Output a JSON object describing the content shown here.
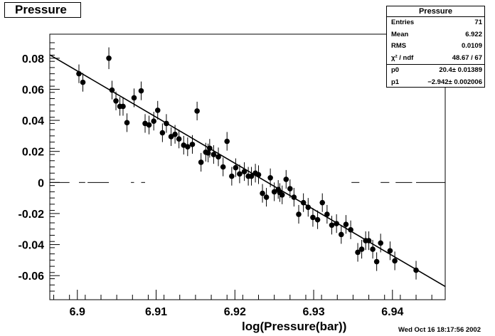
{
  "chart_data": {
    "type": "scatter",
    "title": "Pressure",
    "xlabel": "log(Pressure(bar))",
    "ylabel": "",
    "xlim": [
      6.8965,
      6.9467
    ],
    "ylim": [
      -0.0755,
      0.0955
    ],
    "x_ticks": [
      6.9,
      6.91,
      6.92,
      6.93,
      6.94
    ],
    "x_tick_labels": [
      "6.9",
      "6.91",
      "6.92",
      "6.93",
      "6.94"
    ],
    "y_ticks": [
      0.08,
      0.06,
      0.04,
      0.02,
      0,
      -0.02,
      -0.04,
      -0.06
    ],
    "y_tick_labels": [
      "0.08",
      "0.06",
      "0.04",
      "0.02",
      "0",
      "-0.02",
      "-0.04",
      "-0.06"
    ],
    "grid": false,
    "points": [
      [
        6.9002,
        0.07,
        0.006
      ],
      [
        6.9007,
        0.0645,
        0.006
      ],
      [
        6.904,
        0.08,
        0.007
      ],
      [
        6.9044,
        0.0595,
        0.006
      ],
      [
        6.9049,
        0.0525,
        0.006
      ],
      [
        6.9054,
        0.049,
        0.006
      ],
      [
        6.9058,
        0.049,
        0.006
      ],
      [
        6.9063,
        0.0385,
        0.006
      ],
      [
        6.9072,
        0.0545,
        0.006
      ],
      [
        6.9081,
        0.059,
        0.006
      ],
      [
        6.9086,
        0.038,
        0.006
      ],
      [
        6.9091,
        0.037,
        0.006
      ],
      [
        6.9097,
        0.0395,
        0.006
      ],
      [
        6.9102,
        0.0465,
        0.006
      ],
      [
        6.9108,
        0.032,
        0.006
      ],
      [
        6.9113,
        0.038,
        0.006
      ],
      [
        6.9119,
        0.0295,
        0.006
      ],
      [
        6.9124,
        0.031,
        0.006
      ],
      [
        6.9129,
        0.028,
        0.006
      ],
      [
        6.9135,
        0.024,
        0.006
      ],
      [
        6.914,
        0.023,
        0.006
      ],
      [
        6.9146,
        0.0245,
        0.006
      ],
      [
        6.9152,
        0.046,
        0.006
      ],
      [
        6.9157,
        0.013,
        0.006
      ],
      [
        6.9163,
        0.0195,
        0.006
      ],
      [
        6.9168,
        0.022,
        0.006
      ],
      [
        6.9173,
        0.018,
        0.006
      ],
      [
        6.9179,
        0.0165,
        0.006
      ],
      [
        6.9185,
        0.01,
        0.006
      ],
      [
        6.919,
        0.0265,
        0.006
      ],
      [
        6.9196,
        0.004,
        0.006
      ],
      [
        6.9201,
        0.0095,
        0.006
      ],
      [
        6.9206,
        0.0055,
        0.006
      ],
      [
        6.9212,
        0.007,
        0.006
      ],
      [
        6.9217,
        0.004,
        0.006
      ],
      [
        6.9221,
        0.004,
        0.006
      ],
      [
        6.9226,
        0.006,
        0.006
      ],
      [
        6.923,
        0.005,
        0.006
      ],
      [
        6.9235,
        -0.007,
        0.006
      ],
      [
        6.924,
        -0.0095,
        0.006
      ],
      [
        6.9245,
        0.003,
        0.006
      ],
      [
        6.925,
        -0.006,
        0.006
      ],
      [
        6.9255,
        -0.0045,
        0.006
      ],
      [
        6.926,
        -0.008,
        0.006
      ],
      [
        6.9265,
        0.002,
        0.006
      ],
      [
        6.927,
        -0.004,
        0.006
      ],
      [
        6.9275,
        -0.0095,
        0.006
      ],
      [
        6.9281,
        -0.0205,
        0.006
      ],
      [
        6.9287,
        -0.013,
        0.006
      ],
      [
        6.9293,
        -0.016,
        0.006
      ],
      [
        6.9299,
        -0.0225,
        0.006
      ],
      [
        6.9305,
        -0.024,
        0.006
      ],
      [
        6.9311,
        -0.013,
        0.006
      ],
      [
        6.9317,
        -0.0205,
        0.006
      ],
      [
        6.9323,
        -0.0275,
        0.006
      ],
      [
        6.9329,
        -0.0265,
        0.006
      ],
      [
        6.9335,
        -0.0335,
        0.006
      ],
      [
        6.9341,
        -0.027,
        0.006
      ],
      [
        6.9347,
        -0.0305,
        0.006
      ],
      [
        6.9356,
        -0.045,
        0.006
      ],
      [
        6.9361,
        -0.043,
        0.006
      ],
      [
        6.9366,
        -0.0375,
        0.006
      ],
      [
        6.937,
        -0.0375,
        0.006
      ],
      [
        6.9375,
        -0.043,
        0.006
      ],
      [
        6.938,
        -0.051,
        0.006
      ],
      [
        6.9385,
        -0.039,
        0.006
      ],
      [
        6.9397,
        -0.044,
        0.006
      ],
      [
        6.9403,
        -0.0505,
        0.006
      ],
      [
        6.943,
        -0.0565,
        0.006
      ],
      [
        6.9166,
        0.019,
        0.006
      ],
      [
        6.9257,
        -0.0065,
        0.006
      ]
    ],
    "fit_line": {
      "x": [
        6.8965,
        6.9467
      ],
      "y": [
        0.0822,
        -0.067
      ]
    },
    "zero_segments": [
      [
        6.8965,
        6.899
      ],
      [
        6.9002,
        6.901
      ],
      [
        6.9013,
        6.904
      ],
      [
        6.9068,
        6.9072
      ],
      [
        6.9081,
        6.9086
      ],
      [
        6.9348,
        6.9358
      ],
      [
        6.9385,
        6.9396
      ],
      [
        6.9404,
        6.9425
      ],
      [
        6.943,
        6.9467
      ]
    ],
    "stats": {
      "title": "Pressure",
      "rows": [
        [
          "Entries",
          "71"
        ],
        [
          "Mean",
          "6.922"
        ],
        [
          "RMS",
          "0.0109"
        ],
        [
          "χ² / ndf",
          "48.67 / 67"
        ]
      ],
      "fit_rows": [
        [
          "p0",
          "20.4± 0.01389"
        ],
        [
          "p1",
          "−2.942± 0.002006"
        ]
      ]
    }
  },
  "timestamp": "Wed Oct 16 18:17:56 2002"
}
